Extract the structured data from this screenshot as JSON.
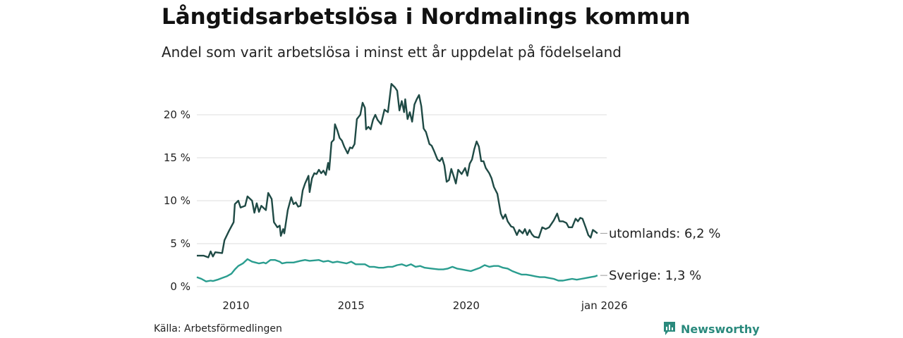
{
  "header": {
    "title": "Långtidsarbetslösa i Nordmalings kommun",
    "subtitle": "Andel som varit arbetslösa i minst ett år uppdelat på födelseland"
  },
  "footer": {
    "source": "Källa: Arbetsförmedlingen",
    "brand": "Newsworthy"
  },
  "colors": {
    "utomlands": "#1f4a45",
    "sverige": "#2a9d8f",
    "grid": "#dcdcdc"
  },
  "chart_data": {
    "type": "line",
    "title": "Långtidsarbetslösa i Nordmalings kommun",
    "subtitle": "Andel som varit arbetslösa i minst ett år uppdelat på födelseland",
    "xlabel": "",
    "ylabel": "",
    "x_range": [
      2008.3,
      2026.1
    ],
    "ylim": [
      0,
      24
    ],
    "y_ticks": [
      0,
      5,
      10,
      15,
      20
    ],
    "y_tick_labels": [
      "0 %",
      "5 %",
      "10 %",
      "15 %",
      "20 %"
    ],
    "x_ticks": [
      2010,
      2015,
      2020,
      2026.0
    ],
    "x_tick_labels": [
      "2010",
      "2015",
      "2020",
      "jan 2026"
    ],
    "grid": true,
    "series": [
      {
        "name": "utomlands",
        "end_label": "utomlands: 6,2 %",
        "points": [
          [
            2008.3,
            3.6
          ],
          [
            2008.6,
            3.6
          ],
          [
            2008.8,
            3.4
          ],
          [
            2008.9,
            4.1
          ],
          [
            2009.0,
            3.5
          ],
          [
            2009.1,
            4.0
          ],
          [
            2009.4,
            3.9
          ],
          [
            2009.5,
            5.4
          ],
          [
            2009.7,
            6.5
          ],
          [
            2009.9,
            7.5
          ],
          [
            2009.95,
            9.6
          ],
          [
            2010.1,
            10.0
          ],
          [
            2010.2,
            9.2
          ],
          [
            2010.4,
            9.4
          ],
          [
            2010.5,
            10.5
          ],
          [
            2010.7,
            10.0
          ],
          [
            2010.8,
            8.6
          ],
          [
            2010.9,
            9.7
          ],
          [
            2011.0,
            8.7
          ],
          [
            2011.1,
            9.4
          ],
          [
            2011.3,
            8.9
          ],
          [
            2011.4,
            10.9
          ],
          [
            2011.55,
            10.2
          ],
          [
            2011.65,
            7.5
          ],
          [
            2011.8,
            6.9
          ],
          [
            2011.9,
            7.1
          ],
          [
            2011.95,
            5.9
          ],
          [
            2012.05,
            6.7
          ],
          [
            2012.1,
            6.2
          ],
          [
            2012.25,
            8.9
          ],
          [
            2012.4,
            10.4
          ],
          [
            2012.5,
            9.6
          ],
          [
            2012.6,
            9.8
          ],
          [
            2012.7,
            9.3
          ],
          [
            2012.8,
            9.4
          ],
          [
            2012.9,
            11.2
          ],
          [
            2013.0,
            12.0
          ],
          [
            2013.15,
            12.9
          ],
          [
            2013.2,
            11.0
          ],
          [
            2013.3,
            12.6
          ],
          [
            2013.4,
            13.2
          ],
          [
            2013.5,
            13.1
          ],
          [
            2013.6,
            13.6
          ],
          [
            2013.7,
            13.2
          ],
          [
            2013.8,
            13.5
          ],
          [
            2013.9,
            13.0
          ],
          [
            2014.0,
            14.4
          ],
          [
            2014.05,
            13.6
          ],
          [
            2014.15,
            16.8
          ],
          [
            2014.25,
            17.1
          ],
          [
            2014.3,
            18.9
          ],
          [
            2014.4,
            18.2
          ],
          [
            2014.5,
            17.3
          ],
          [
            2014.6,
            17.0
          ],
          [
            2014.7,
            16.3
          ],
          [
            2014.85,
            15.5
          ],
          [
            2014.95,
            16.2
          ],
          [
            2015.05,
            16.1
          ],
          [
            2015.15,
            16.6
          ],
          [
            2015.25,
            19.5
          ],
          [
            2015.4,
            20.0
          ],
          [
            2015.5,
            21.4
          ],
          [
            2015.6,
            20.8
          ],
          [
            2015.65,
            18.3
          ],
          [
            2015.75,
            18.6
          ],
          [
            2015.85,
            18.3
          ],
          [
            2015.95,
            19.4
          ],
          [
            2016.05,
            20.0
          ],
          [
            2016.15,
            19.4
          ],
          [
            2016.3,
            18.9
          ],
          [
            2016.45,
            20.6
          ],
          [
            2016.6,
            20.3
          ],
          [
            2016.75,
            23.6
          ],
          [
            2016.9,
            23.2
          ],
          [
            2017.0,
            22.8
          ],
          [
            2017.1,
            20.5
          ],
          [
            2017.2,
            21.6
          ],
          [
            2017.3,
            20.3
          ],
          [
            2017.35,
            21.8
          ],
          [
            2017.45,
            19.5
          ],
          [
            2017.55,
            20.3
          ],
          [
            2017.65,
            19.2
          ],
          [
            2017.75,
            21.2
          ],
          [
            2017.85,
            21.8
          ],
          [
            2017.95,
            22.3
          ],
          [
            2018.05,
            21.0
          ],
          [
            2018.15,
            18.4
          ],
          [
            2018.25,
            18.0
          ],
          [
            2018.4,
            16.6
          ],
          [
            2018.5,
            16.4
          ],
          [
            2018.6,
            15.8
          ],
          [
            2018.75,
            14.8
          ],
          [
            2018.85,
            14.6
          ],
          [
            2018.95,
            15.0
          ],
          [
            2019.05,
            14.1
          ],
          [
            2019.15,
            12.2
          ],
          [
            2019.25,
            12.4
          ],
          [
            2019.35,
            13.7
          ],
          [
            2019.45,
            12.9
          ],
          [
            2019.55,
            12.0
          ],
          [
            2019.65,
            13.6
          ],
          [
            2019.8,
            13.1
          ],
          [
            2019.95,
            13.8
          ],
          [
            2020.05,
            12.9
          ],
          [
            2020.15,
            14.3
          ],
          [
            2020.25,
            14.8
          ],
          [
            2020.35,
            16.0
          ],
          [
            2020.45,
            16.9
          ],
          [
            2020.55,
            16.3
          ],
          [
            2020.65,
            14.6
          ],
          [
            2020.75,
            14.6
          ],
          [
            2020.85,
            13.8
          ],
          [
            2021.0,
            13.2
          ],
          [
            2021.1,
            12.6
          ],
          [
            2021.2,
            11.6
          ],
          [
            2021.35,
            10.8
          ],
          [
            2021.5,
            8.5
          ],
          [
            2021.6,
            7.9
          ],
          [
            2021.7,
            8.4
          ],
          [
            2021.8,
            7.6
          ],
          [
            2021.95,
            7.0
          ],
          [
            2022.05,
            6.9
          ],
          [
            2022.2,
            6.0
          ],
          [
            2022.3,
            6.6
          ],
          [
            2022.45,
            6.2
          ],
          [
            2022.55,
            6.7
          ],
          [
            2022.65,
            6.0
          ],
          [
            2022.75,
            6.6
          ],
          [
            2022.85,
            6.1
          ],
          [
            2022.95,
            5.8
          ],
          [
            2023.15,
            5.7
          ],
          [
            2023.3,
            6.9
          ],
          [
            2023.45,
            6.7
          ],
          [
            2023.6,
            6.9
          ],
          [
            2023.8,
            7.7
          ],
          [
            2023.95,
            8.5
          ],
          [
            2024.05,
            7.6
          ],
          [
            2024.2,
            7.6
          ],
          [
            2024.35,
            7.4
          ],
          [
            2024.45,
            6.9
          ],
          [
            2024.6,
            6.9
          ],
          [
            2024.75,
            7.9
          ],
          [
            2024.85,
            7.6
          ],
          [
            2024.95,
            8.0
          ],
          [
            2025.05,
            7.9
          ],
          [
            2025.2,
            6.8
          ],
          [
            2025.3,
            6.0
          ],
          [
            2025.4,
            5.7
          ],
          [
            2025.5,
            6.6
          ],
          [
            2025.6,
            6.4
          ],
          [
            2025.7,
            6.2
          ]
        ]
      },
      {
        "name": "Sverige",
        "end_label": "Sverige: 1,3 %",
        "points": [
          [
            2008.3,
            1.1
          ],
          [
            2008.5,
            0.9
          ],
          [
            2008.7,
            0.6
          ],
          [
            2008.9,
            0.7
          ],
          [
            2009.0,
            0.65
          ],
          [
            2009.2,
            0.8
          ],
          [
            2009.4,
            1.0
          ],
          [
            2009.6,
            1.2
          ],
          [
            2009.8,
            1.5
          ],
          [
            2009.95,
            2.0
          ],
          [
            2010.1,
            2.4
          ],
          [
            2010.3,
            2.7
          ],
          [
            2010.5,
            3.2
          ],
          [
            2010.7,
            2.9
          ],
          [
            2010.85,
            2.8
          ],
          [
            2011.0,
            2.7
          ],
          [
            2011.2,
            2.8
          ],
          [
            2011.3,
            2.7
          ],
          [
            2011.5,
            3.1
          ],
          [
            2011.7,
            3.1
          ],
          [
            2011.9,
            2.9
          ],
          [
            2012.0,
            2.7
          ],
          [
            2012.2,
            2.8
          ],
          [
            2012.5,
            2.8
          ],
          [
            2012.8,
            3.0
          ],
          [
            2013.0,
            3.1
          ],
          [
            2013.2,
            3.0
          ],
          [
            2013.4,
            3.05
          ],
          [
            2013.6,
            3.1
          ],
          [
            2013.8,
            2.9
          ],
          [
            2014.0,
            3.0
          ],
          [
            2014.2,
            2.8
          ],
          [
            2014.4,
            2.9
          ],
          [
            2014.6,
            2.8
          ],
          [
            2014.8,
            2.7
          ],
          [
            2015.0,
            2.9
          ],
          [
            2015.2,
            2.6
          ],
          [
            2015.4,
            2.6
          ],
          [
            2015.6,
            2.6
          ],
          [
            2015.8,
            2.3
          ],
          [
            2016.0,
            2.3
          ],
          [
            2016.2,
            2.2
          ],
          [
            2016.4,
            2.2
          ],
          [
            2016.6,
            2.3
          ],
          [
            2016.8,
            2.3
          ],
          [
            2017.0,
            2.5
          ],
          [
            2017.2,
            2.6
          ],
          [
            2017.4,
            2.4
          ],
          [
            2017.6,
            2.6
          ],
          [
            2017.8,
            2.3
          ],
          [
            2018.0,
            2.4
          ],
          [
            2018.2,
            2.2
          ],
          [
            2018.5,
            2.1
          ],
          [
            2018.8,
            2.0
          ],
          [
            2019.0,
            2.0
          ],
          [
            2019.2,
            2.1
          ],
          [
            2019.4,
            2.3
          ],
          [
            2019.6,
            2.1
          ],
          [
            2019.8,
            2.0
          ],
          [
            2020.0,
            1.9
          ],
          [
            2020.2,
            1.8
          ],
          [
            2020.4,
            2.0
          ],
          [
            2020.6,
            2.2
          ],
          [
            2020.8,
            2.5
          ],
          [
            2021.0,
            2.3
          ],
          [
            2021.2,
            2.4
          ],
          [
            2021.4,
            2.4
          ],
          [
            2021.6,
            2.2
          ],
          [
            2021.8,
            2.1
          ],
          [
            2022.0,
            1.8
          ],
          [
            2022.2,
            1.6
          ],
          [
            2022.4,
            1.4
          ],
          [
            2022.6,
            1.4
          ],
          [
            2022.8,
            1.3
          ],
          [
            2023.0,
            1.2
          ],
          [
            2023.2,
            1.1
          ],
          [
            2023.4,
            1.1
          ],
          [
            2023.6,
            1.0
          ],
          [
            2023.8,
            0.9
          ],
          [
            2024.0,
            0.7
          ],
          [
            2024.2,
            0.7
          ],
          [
            2024.4,
            0.8
          ],
          [
            2024.6,
            0.9
          ],
          [
            2024.8,
            0.8
          ],
          [
            2025.0,
            0.9
          ],
          [
            2025.2,
            1.0
          ],
          [
            2025.4,
            1.1
          ],
          [
            2025.6,
            1.2
          ],
          [
            2025.7,
            1.3
          ]
        ]
      }
    ]
  }
}
